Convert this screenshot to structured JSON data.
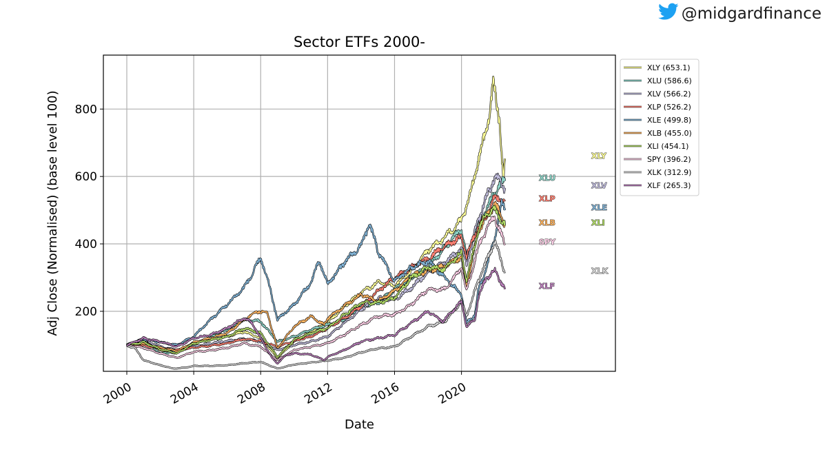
{
  "social": {
    "handle": "@midgardfinance",
    "icon": "twitter-bird-icon",
    "icon_color": "#1DA1F2"
  },
  "chart_data": {
    "type": "line",
    "title": "Sector ETFs 2000-",
    "xlabel": "Date",
    "ylabel": "Adj Close (Normalised) (base level 100)",
    "xlim": [
      1998.6,
      2029.2
    ],
    "ylim": [
      22,
      960
    ],
    "xticks": [
      2000,
      2004,
      2008,
      2012,
      2016,
      2020
    ],
    "xtick_labels": [
      "2000",
      "2004",
      "2008",
      "2012",
      "2016",
      "2020"
    ],
    "yticks": [
      200,
      400,
      600,
      800
    ],
    "ytick_labels": [
      "200",
      "400",
      "600",
      "800"
    ],
    "grid": true,
    "legend_position": "outside-right-top",
    "series": [
      {
        "name": "XLY (653.1)",
        "tag": "XLY",
        "color": "#ffff99",
        "points": [
          [
            2000,
            100
          ],
          [
            2001,
            112
          ],
          [
            2002,
            85
          ],
          [
            2003,
            75
          ],
          [
            2004,
            105
          ],
          [
            2005,
            118
          ],
          [
            2006,
            125
          ],
          [
            2007,
            140
          ],
          [
            2008,
            120
          ],
          [
            2009,
            62
          ],
          [
            2010,
            110
          ],
          [
            2011,
            140
          ],
          [
            2012,
            165
          ],
          [
            2013,
            215
          ],
          [
            2014,
            255
          ],
          [
            2015,
            285
          ],
          [
            2016,
            275
          ],
          [
            2017,
            320
          ],
          [
            2018,
            380
          ],
          [
            2019,
            420
          ],
          [
            2020,
            470
          ],
          [
            2020.5,
            540
          ],
          [
            2021,
            650
          ],
          [
            2021.5,
            740
          ],
          [
            2021.9,
            870
          ],
          [
            2022.3,
            760
          ],
          [
            2022.5,
            590
          ],
          [
            2022.6,
            653.1
          ]
        ]
      },
      {
        "name": "XLU (586.6)",
        "tag": "XLU",
        "color": "#8dd3c7",
        "points": [
          [
            2000,
            100
          ],
          [
            2001,
            115
          ],
          [
            2002,
            75
          ],
          [
            2003,
            80
          ],
          [
            2004,
            100
          ],
          [
            2005,
            125
          ],
          [
            2006,
            145
          ],
          [
            2007,
            175
          ],
          [
            2008,
            170
          ],
          [
            2009,
            110
          ],
          [
            2010,
            125
          ],
          [
            2011,
            145
          ],
          [
            2012,
            160
          ],
          [
            2013,
            175
          ],
          [
            2014,
            215
          ],
          [
            2015,
            225
          ],
          [
            2016,
            265
          ],
          [
            2017,
            300
          ],
          [
            2018,
            330
          ],
          [
            2019,
            390
          ],
          [
            2020,
            445
          ],
          [
            2020.3,
            360
          ],
          [
            2021,
            460
          ],
          [
            2021.5,
            500
          ],
          [
            2022,
            560
          ],
          [
            2022.6,
            586.6
          ]
        ]
      },
      {
        "name": "XLV (566.2)",
        "tag": "XLV",
        "color": "#bebada",
        "points": [
          [
            2000,
            100
          ],
          [
            2001,
            115
          ],
          [
            2002,
            95
          ],
          [
            2003,
            85
          ],
          [
            2004,
            95
          ],
          [
            2005,
            105
          ],
          [
            2006,
            112
          ],
          [
            2007,
            118
          ],
          [
            2008,
            110
          ],
          [
            2009,
            85
          ],
          [
            2010,
            100
          ],
          [
            2011,
            110
          ],
          [
            2012,
            125
          ],
          [
            2013,
            165
          ],
          [
            2014,
            205
          ],
          [
            2015,
            240
          ],
          [
            2016,
            235
          ],
          [
            2017,
            270
          ],
          [
            2018,
            315
          ],
          [
            2019,
            345
          ],
          [
            2020,
            385
          ],
          [
            2020.3,
            340
          ],
          [
            2021,
            470
          ],
          [
            2021.5,
            540
          ],
          [
            2022,
            600
          ],
          [
            2022.6,
            566.2
          ]
        ]
      },
      {
        "name": "XLP (526.2)",
        "tag": "XLP",
        "color": "#fb8072",
        "points": [
          [
            2000,
            100
          ],
          [
            2001,
            98
          ],
          [
            2002,
            90
          ],
          [
            2003,
            85
          ],
          [
            2004,
            92
          ],
          [
            2005,
            98
          ],
          [
            2006,
            105
          ],
          [
            2007,
            118
          ],
          [
            2008,
            112
          ],
          [
            2009,
            95
          ],
          [
            2010,
            112
          ],
          [
            2011,
            125
          ],
          [
            2012,
            150
          ],
          [
            2013,
            180
          ],
          [
            2014,
            215
          ],
          [
            2015,
            260
          ],
          [
            2016,
            300
          ],
          [
            2017,
            330
          ],
          [
            2018,
            355
          ],
          [
            2019,
            395
          ],
          [
            2020,
            420
          ],
          [
            2020.3,
            365
          ],
          [
            2021,
            450
          ],
          [
            2021.5,
            480
          ],
          [
            2022,
            540
          ],
          [
            2022.6,
            526.2
          ]
        ]
      },
      {
        "name": "XLE (499.8)",
        "tag": "XLE",
        "color": "#80b1d3",
        "points": [
          [
            2000,
            100
          ],
          [
            2001,
            118
          ],
          [
            2002,
            108
          ],
          [
            2003,
            100
          ],
          [
            2004,
            125
          ],
          [
            2005,
            175
          ],
          [
            2006,
            220
          ],
          [
            2007,
            270
          ],
          [
            2007.5,
            310
          ],
          [
            2008,
            360
          ],
          [
            2008.6,
            260
          ],
          [
            2009,
            175
          ],
          [
            2010,
            220
          ],
          [
            2011,
            285
          ],
          [
            2011.5,
            350
          ],
          [
            2012,
            280
          ],
          [
            2013,
            345
          ],
          [
            2014,
            395
          ],
          [
            2014.5,
            460
          ],
          [
            2015,
            380
          ],
          [
            2016,
            290
          ],
          [
            2017,
            330
          ],
          [
            2018,
            350
          ],
          [
            2019,
            300
          ],
          [
            2020,
            250
          ],
          [
            2020.3,
            165
          ],
          [
            2020.8,
            190
          ],
          [
            2021,
            260
          ],
          [
            2021.5,
            330
          ],
          [
            2022,
            420
          ],
          [
            2022.4,
            520
          ],
          [
            2022.6,
            499.8
          ]
        ]
      },
      {
        "name": "XLB (455.0)",
        "tag": "XLB",
        "color": "#fdb462",
        "points": [
          [
            2000,
            100
          ],
          [
            2001,
            105
          ],
          [
            2002,
            92
          ],
          [
            2003,
            82
          ],
          [
            2004,
            108
          ],
          [
            2005,
            120
          ],
          [
            2006,
            135
          ],
          [
            2007,
            175
          ],
          [
            2007.8,
            200
          ],
          [
            2008.4,
            195
          ],
          [
            2009,
            90
          ],
          [
            2010,
            155
          ],
          [
            2011,
            185
          ],
          [
            2011.8,
            160
          ],
          [
            2012,
            180
          ],
          [
            2013,
            215
          ],
          [
            2014,
            250
          ],
          [
            2015,
            230
          ],
          [
            2016,
            260
          ],
          [
            2017,
            305
          ],
          [
            2018,
            320
          ],
          [
            2019,
            335
          ],
          [
            2020,
            360
          ],
          [
            2020.3,
            275
          ],
          [
            2021,
            440
          ],
          [
            2021.5,
            480
          ],
          [
            2022,
            520
          ],
          [
            2022.6,
            455.0
          ]
        ]
      },
      {
        "name": "XLI (454.1)",
        "tag": "XLI",
        "color": "#b3de69",
        "points": [
          [
            2000,
            100
          ],
          [
            2001,
            108
          ],
          [
            2002,
            88
          ],
          [
            2003,
            75
          ],
          [
            2004,
            105
          ],
          [
            2005,
            115
          ],
          [
            2006,
            125
          ],
          [
            2007,
            150
          ],
          [
            2008,
            135
          ],
          [
            2009,
            65
          ],
          [
            2010,
            115
          ],
          [
            2011,
            135
          ],
          [
            2012,
            150
          ],
          [
            2013,
            190
          ],
          [
            2014,
            225
          ],
          [
            2015,
            225
          ],
          [
            2016,
            240
          ],
          [
            2017,
            300
          ],
          [
            2018,
            330
          ],
          [
            2019,
            325
          ],
          [
            2020,
            375
          ],
          [
            2020.3,
            290
          ],
          [
            2021,
            440
          ],
          [
            2021.5,
            490
          ],
          [
            2022,
            500
          ],
          [
            2022.6,
            454.1
          ]
        ]
      },
      {
        "name": "SPY (396.2)",
        "tag": "SPY",
        "color": "#fccde5",
        "points": [
          [
            2000,
            100
          ],
          [
            2001,
            92
          ],
          [
            2002,
            75
          ],
          [
            2003,
            62
          ],
          [
            2004,
            80
          ],
          [
            2005,
            84
          ],
          [
            2006,
            92
          ],
          [
            2007,
            105
          ],
          [
            2008,
            95
          ],
          [
            2009,
            55
          ],
          [
            2010,
            85
          ],
          [
            2011,
            95
          ],
          [
            2012,
            105
          ],
          [
            2013,
            130
          ],
          [
            2014,
            160
          ],
          [
            2015,
            185
          ],
          [
            2016,
            190
          ],
          [
            2017,
            220
          ],
          [
            2018,
            265
          ],
          [
            2019,
            265
          ],
          [
            2020,
            330
          ],
          [
            2020.3,
            260
          ],
          [
            2021,
            390
          ],
          [
            2021.5,
            445
          ],
          [
            2022,
            480
          ],
          [
            2022.6,
            396.2
          ]
        ]
      },
      {
        "name": "XLK (312.9)",
        "tag": "XLK",
        "color": "#d9d9d9",
        "points": [
          [
            2000,
            100
          ],
          [
            2000.5,
            90
          ],
          [
            2001,
            55
          ],
          [
            2002,
            40
          ],
          [
            2002.8,
            30
          ],
          [
            2003.5,
            33
          ],
          [
            2004,
            38
          ],
          [
            2005,
            38
          ],
          [
            2006,
            40
          ],
          [
            2007,
            46
          ],
          [
            2008,
            50
          ],
          [
            2008.5,
            40
          ],
          [
            2009,
            30
          ],
          [
            2010,
            42
          ],
          [
            2011,
            48
          ],
          [
            2012,
            54
          ],
          [
            2013,
            62
          ],
          [
            2014,
            78
          ],
          [
            2015,
            90
          ],
          [
            2016,
            95
          ],
          [
            2017,
            125
          ],
          [
            2018,
            155
          ],
          [
            2019,
            170
          ],
          [
            2020,
            230
          ],
          [
            2020.3,
            185
          ],
          [
            2021,
            290
          ],
          [
            2021.5,
            350
          ],
          [
            2022,
            410
          ],
          [
            2022.3,
            360
          ],
          [
            2022.6,
            312.9
          ]
        ]
      },
      {
        "name": "XLF (265.3)",
        "tag": "XLF",
        "color": "#bc80bd",
        "points": [
          [
            2000,
            100
          ],
          [
            2001,
            120
          ],
          [
            2002,
            110
          ],
          [
            2003,
            95
          ],
          [
            2004,
            120
          ],
          [
            2005,
            130
          ],
          [
            2006,
            150
          ],
          [
            2007,
            180
          ],
          [
            2007.5,
            165
          ],
          [
            2008,
            120
          ],
          [
            2008.7,
            60
          ],
          [
            2009,
            45
          ],
          [
            2009.5,
            70
          ],
          [
            2010,
            75
          ],
          [
            2011,
            72
          ],
          [
            2011.8,
            55
          ],
          [
            2012,
            65
          ],
          [
            2013,
            85
          ],
          [
            2014,
            110
          ],
          [
            2015,
            120
          ],
          [
            2016,
            130
          ],
          [
            2017,
            165
          ],
          [
            2018,
            200
          ],
          [
            2018.9,
            170
          ],
          [
            2019,
            175
          ],
          [
            2020,
            230
          ],
          [
            2020.3,
            155
          ],
          [
            2020.8,
            175
          ],
          [
            2021,
            240
          ],
          [
            2021.5,
            300
          ],
          [
            2022,
            320
          ],
          [
            2022.6,
            265.3
          ]
        ]
      }
    ]
  }
}
